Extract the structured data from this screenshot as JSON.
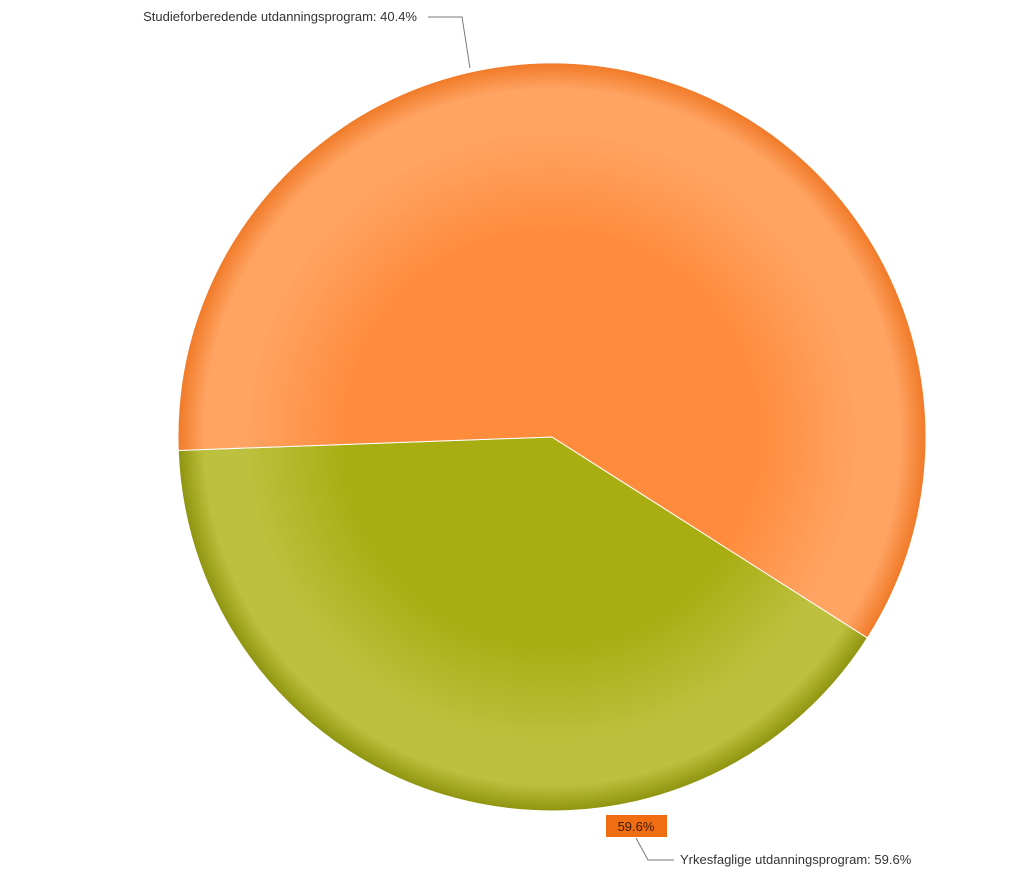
{
  "chart_data": {
    "type": "pie",
    "title": "",
    "slices": [
      {
        "label": "Studieforberedende utdanningsprogram",
        "value": 40.4,
        "display": "Studieforberedende utdanningsprogram: 40.4%",
        "color": "#a8ad12",
        "highlight": "#bcc03e",
        "edge": "#8f9410"
      },
      {
        "label": "Yrkesfaglige utdanningsprogram",
        "value": 59.6,
        "display": "Yrkesfaglige utdanningsprogram: 59.6%",
        "color": "#ff8c3d",
        "highlight": "#ffa463",
        "edge": "#f07a28"
      }
    ],
    "hover_badge": {
      "text": "59.6%",
      "background": "#f06d12"
    }
  }
}
